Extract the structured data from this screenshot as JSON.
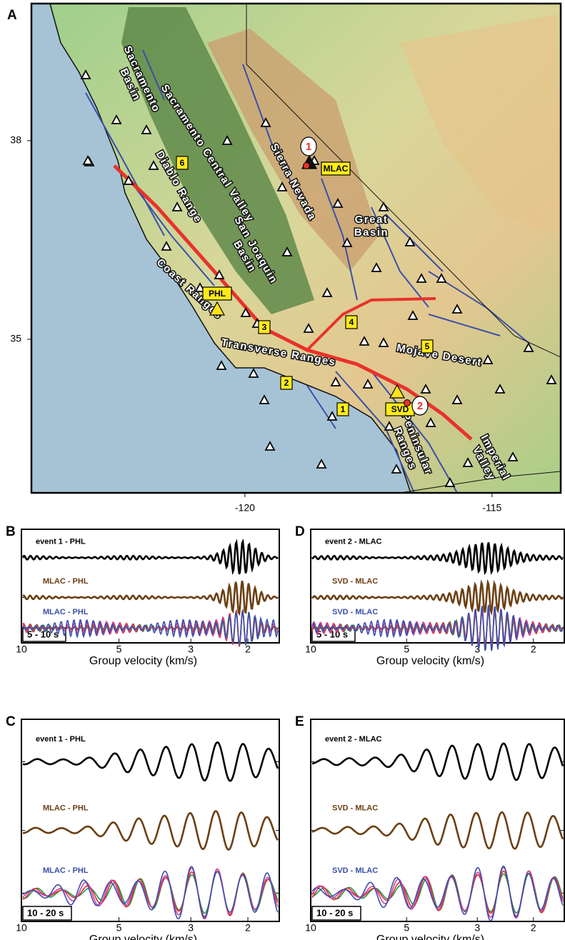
{
  "map": {
    "panel_label": "A",
    "xlim": [
      -124.32,
      -113.61
    ],
    "ylim": [
      40.07,
      32.68
    ],
    "xticks": [
      -120,
      -115
    ],
    "yticks": [
      38,
      35
    ],
    "regions": [
      {
        "lines": [
          "Sacramento",
          "Basin"
        ]
      },
      {
        "lines": [
          "Sacramento Central Valley"
        ]
      },
      {
        "lines": [
          "Diablo Range"
        ]
      },
      {
        "lines": [
          "San Joaquin",
          "Basin"
        ]
      },
      {
        "lines": [
          "Coast Ranges"
        ]
      },
      {
        "lines": [
          "Sierra Nevada"
        ]
      },
      {
        "lines": [
          "Great",
          "Basin"
        ]
      },
      {
        "lines": [
          "Transverse Ranges"
        ]
      },
      {
        "lines": [
          "Mojave Desert"
        ]
      },
      {
        "lines": [
          "Peninsular",
          "Ranges"
        ]
      },
      {
        "lines": [
          "Imperial",
          "Valley"
        ]
      }
    ],
    "stations": [
      "MLAC",
      "PHL",
      "SVD"
    ],
    "events": [
      "1",
      "2"
    ],
    "paths": [
      "1",
      "2",
      "3",
      "4",
      "5",
      "6"
    ]
  },
  "panels": [
    {
      "label": "B",
      "traces": [
        "event 1 - PHL",
        "MLAC - PHL",
        "MLAC - PHL"
      ],
      "band": "5 - 10 s",
      "xticks": [
        10,
        5,
        3,
        2
      ],
      "xlim": [
        10,
        1.6
      ],
      "xscale": "log",
      "xlabel": "Group velocity (km/s)"
    },
    {
      "label": "D",
      "traces": [
        "event 2 - MLAC",
        "SVD - MLAC",
        "SVD - MLAC"
      ],
      "band": "5 - 10 s",
      "xticks": [
        10,
        5,
        3,
        2
      ],
      "xlim": [
        10,
        1.6
      ],
      "xscale": "log",
      "xlabel": "Group velocity (km/s)"
    },
    {
      "label": "C",
      "traces": [
        "event 1 - PHL",
        "MLAC - PHL",
        "MLAC - PHL"
      ],
      "band": "10 - 20 s",
      "xticks": [
        10,
        5,
        3,
        2
      ],
      "xlim": [
        10,
        1.6
      ],
      "xscale": "log",
      "xlabel": "Group velocity (km/s)"
    },
    {
      "label": "E",
      "traces": [
        "event 2 - MLAC",
        "SVD - MLAC",
        "SVD - MLAC"
      ],
      "band": "10 - 20 s",
      "xticks": [
        10,
        5,
        3,
        2
      ],
      "xlim": [
        10,
        1.6
      ],
      "xscale": "log",
      "xlabel": "Group velocity (km/s)"
    }
  ]
}
